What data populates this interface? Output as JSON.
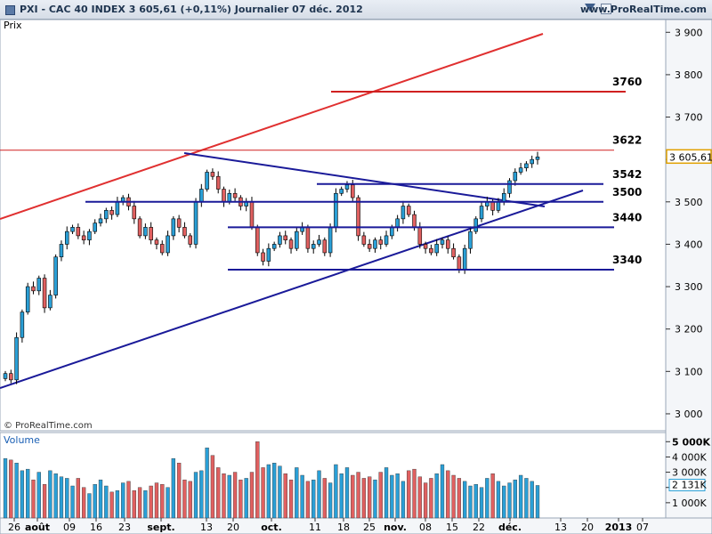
{
  "header": {
    "title": "PXI - CAC 40 INDEX     3 605,61 (+0,11%)     Journalier  07 déc. 2012",
    "url": "www.ProRealTime.com"
  },
  "panels": {
    "price_label": "Prix",
    "volume_label": "Volume",
    "copyright": "© ProRealTime.com"
  },
  "colors": {
    "up": "#2a9fd6",
    "down": "#e06060",
    "trend_red": "#e03030",
    "trend_blue": "#1a1a99"
  },
  "chart_data": [
    {
      "type": "candlestick",
      "title": "PXI - CAC 40 INDEX",
      "ylabel": "Prix",
      "ylim": [
        2960,
        3930
      ],
      "yticks": [
        3000,
        3100,
        3200,
        3300,
        3400,
        3500,
        3600,
        3700,
        3800,
        3900
      ],
      "ytick_labels": [
        "3 000",
        "3 100",
        "3 200",
        "3 300",
        "3 400",
        "3 500",
        "3 600",
        "3 700",
        "3 800",
        "3 900"
      ],
      "current_price_label": "3 605,61",
      "levels": [
        {
          "value": 3760,
          "label": "3760"
        },
        {
          "value": 3622,
          "label": "3622"
        },
        {
          "value": 3542,
          "label": "3542"
        },
        {
          "value": 3500,
          "label": "3500"
        },
        {
          "value": 3440,
          "label": "3440"
        },
        {
          "value": 3340,
          "label": "3340"
        }
      ],
      "x_labels": [
        "26",
        "août",
        "09",
        "16",
        "23",
        "sept.",
        "13",
        "20",
        "oct.",
        "11",
        "18",
        "25",
        "nov.",
        "08",
        "15",
        "22",
        "déc.",
        "13",
        "20",
        "2013",
        "07"
      ],
      "closes": [
        3095,
        3080,
        3180,
        3240,
        3300,
        3290,
        3320,
        3250,
        3280,
        3370,
        3400,
        3430,
        3440,
        3420,
        3410,
        3430,
        3450,
        3460,
        3480,
        3470,
        3500,
        3510,
        3490,
        3460,
        3420,
        3440,
        3410,
        3400,
        3380,
        3420,
        3460,
        3440,
        3420,
        3400,
        3500,
        3530,
        3570,
        3560,
        3530,
        3500,
        3520,
        3510,
        3490,
        3500,
        3440,
        3380,
        3360,
        3390,
        3400,
        3420,
        3410,
        3390,
        3430,
        3440,
        3390,
        3400,
        3410,
        3380,
        3440,
        3520,
        3530,
        3540,
        3510,
        3420,
        3400,
        3390,
        3410,
        3400,
        3420,
        3440,
        3460,
        3490,
        3470,
        3440,
        3400,
        3390,
        3380,
        3400,
        3410,
        3390,
        3370,
        3340,
        3390,
        3430,
        3460,
        3490,
        3500,
        3480,
        3500,
        3520,
        3550,
        3570,
        3580,
        3590,
        3600,
        3606
      ]
    },
    {
      "type": "bar",
      "title": "Volume",
      "ylabel": "Volume",
      "yticks": [
        1000,
        2000,
        3000,
        4000,
        5000
      ],
      "ytick_labels": [
        "1 000K",
        "",
        "3 000K",
        "4 000K",
        "5 000K"
      ],
      "current_volume_label": "2 131K",
      "values": [
        3900,
        3800,
        3600,
        3100,
        3200,
        2500,
        3000,
        2200,
        3100,
        2900,
        2700,
        2600,
        2100,
        2600,
        2000,
        1600,
        2200,
        2500,
        2100,
        1700,
        1800,
        2300,
        2400,
        1800,
        2000,
        1800,
        2100,
        2300,
        2200,
        2000,
        3900,
        3600,
        2500,
        2400,
        3000,
        3100,
        4600,
        4100,
        3300,
        2900,
        2800,
        3000,
        2500,
        2600,
        3000,
        5000,
        3300,
        3500,
        3600,
        3400,
        2900,
        2500,
        3300,
        2800,
        2400,
        2500,
        3100,
        2600,
        2300,
        3500,
        2900,
        3300,
        2800,
        3000,
        2600,
        2700,
        2500,
        3000,
        3300,
        2800,
        2900,
        2400,
        3100,
        3200,
        2700,
        2300,
        2600,
        2900,
        3500,
        3100,
        2800,
        2600,
        2400,
        2100,
        2200,
        2000,
        2600,
        2900,
        2400,
        2100,
        2300,
        2500,
        2800,
        2600,
        2400,
        2131
      ]
    }
  ]
}
